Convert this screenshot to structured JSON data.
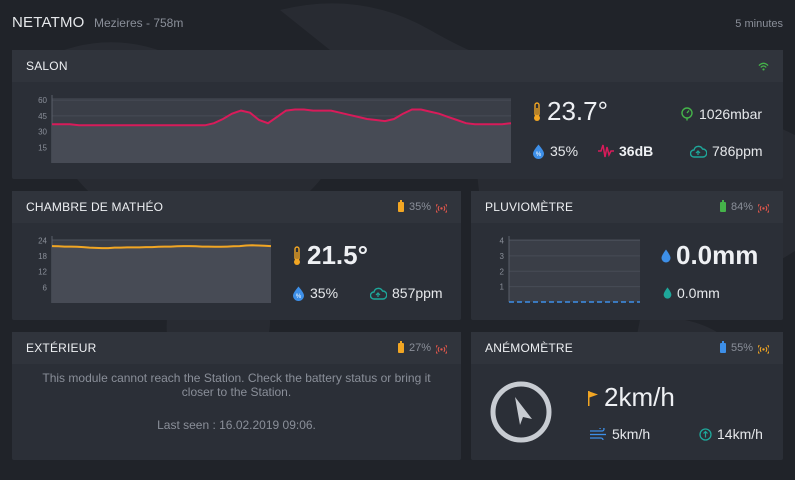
{
  "header": {
    "brand": "NETATMO",
    "location": "Mezieres - 758m",
    "interval": "5 minutes"
  },
  "salon": {
    "title": "SALON",
    "temperature": "23.7°",
    "pressure": "1026mbar",
    "humidity": "35%",
    "noise": "36dB",
    "co2": "786ppm",
    "chart_data": {
      "type": "area",
      "y_ticks": [
        "60",
        "45",
        "30",
        "15"
      ],
      "ylim": [
        0,
        62
      ],
      "values": [
        37,
        37,
        37,
        36,
        36,
        36,
        36,
        36,
        36,
        36,
        36,
        36,
        36,
        36,
        36,
        36,
        36,
        36,
        38,
        42,
        47,
        50,
        48,
        41,
        38,
        44,
        50,
        51,
        51,
        50,
        50,
        50,
        48,
        46,
        44,
        42,
        41,
        40,
        42,
        47,
        51,
        51,
        49,
        47,
        44,
        41,
        38,
        37,
        37,
        37,
        37,
        38
      ],
      "color": "#d81b5a"
    }
  },
  "chambre": {
    "title": "CHAMBRE DE MATHÉO",
    "battery": "35%",
    "temperature": "21.5°",
    "humidity": "35%",
    "co2": "857ppm",
    "chart_data": {
      "type": "area",
      "y_ticks": [
        "24",
        "18",
        "12",
        "6"
      ],
      "ylim": [
        0,
        24.5
      ],
      "values": [
        21.8,
        21.7,
        21.6,
        21.6,
        21.5,
        21.4,
        21.2,
        21.1,
        21.0,
        21.0,
        21.2,
        21.2,
        21.3,
        21.3,
        21.3,
        21.4,
        21.4,
        21.5,
        21.6,
        21.6,
        21.7,
        21.8,
        21.8,
        21.7,
        21.6,
        21.6,
        21.5,
        21.5,
        21.6,
        21.7,
        21.8,
        22.0,
        22.1,
        22.0,
        21.9,
        21.8
      ],
      "color": "#f2a623"
    }
  },
  "pluvio": {
    "title": "PLUVIOMÈTRE",
    "battery": "84%",
    "rain": "0.0mm",
    "rain_sum": "0.0mm",
    "chart_data": {
      "type": "line",
      "y_ticks": [
        "4",
        "3",
        "2",
        "1"
      ],
      "ylim": [
        0,
        4.1
      ],
      "values": [
        0,
        0,
        0,
        0,
        0,
        0,
        0,
        0,
        0,
        0,
        0,
        0,
        0,
        0
      ],
      "color": "#3d8fe8"
    }
  },
  "exterieur": {
    "title": "EXTÉRIEUR",
    "battery": "27%",
    "message": "This module cannot reach the Station. Check the battery status or bring it closer to the Station.",
    "last_seen": "Last seen : 16.02.2019 09:06."
  },
  "anemo": {
    "title": "ANÉMOMÈTRE",
    "battery": "55%",
    "wind": "2km/h",
    "gust": "5km/h",
    "max": "14km/h"
  },
  "colors": {
    "green": "#45b34a",
    "orange": "#f2a623",
    "red": "#d81b5a",
    "blue": "#3d8fe8",
    "teal": "#1ea79a"
  }
}
